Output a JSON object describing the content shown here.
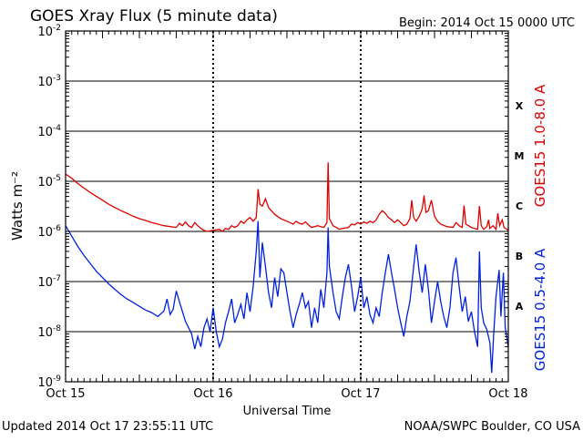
{
  "title": "GOES Xray Flux (5 minute data)",
  "begin_label": "Begin:  2014 Oct 15 0000 UTC",
  "updated_label": "Updated 2014 Oct 17 23:55:11 UTC",
  "credit_label": "NOAA/SWPC Boulder, CO USA",
  "colors": {
    "long_channel": "#e00000",
    "short_channel": "#0020e0",
    "frame": "#000000"
  },
  "chart_data": {
    "type": "line",
    "title": "GOES Xray Flux (5 minute data)",
    "xlabel": "Universal Time",
    "ylabel": "Watts m⁻²",
    "yscale": "log",
    "xlim": [
      0,
      72
    ],
    "ylim": [
      1e-09,
      0.01
    ],
    "x_unit": "hours since 2014 Oct 15 0000 UTC",
    "x_ticks": [
      {
        "value": 0,
        "label": "Oct 15"
      },
      {
        "value": 24,
        "label": "Oct 16"
      },
      {
        "value": 48,
        "label": "Oct 17"
      },
      {
        "value": 72,
        "label": "Oct 18"
      }
    ],
    "y_ticks": [
      {
        "value": 1e-09,
        "base": "10",
        "exp": "-9"
      },
      {
        "value": 1e-08,
        "base": "10",
        "exp": "-8"
      },
      {
        "value": 1e-07,
        "base": "10",
        "exp": "-7"
      },
      {
        "value": 1e-06,
        "base": "10",
        "exp": "-6"
      },
      {
        "value": 1e-05,
        "base": "10",
        "exp": "-5"
      },
      {
        "value": 0.0001,
        "base": "10",
        "exp": "-4"
      },
      {
        "value": 0.001,
        "base": "10",
        "exp": "-3"
      },
      {
        "value": 0.01,
        "base": "10",
        "exp": "-2"
      }
    ],
    "flare_classes": [
      {
        "label": "X",
        "value": 0.00032
      },
      {
        "label": "M",
        "value": 3.2e-05
      },
      {
        "label": "C",
        "value": 3.2e-06
      },
      {
        "label": "B",
        "value": 3.2e-07
      },
      {
        "label": "A",
        "value": 3.2e-08
      }
    ],
    "grid": true,
    "series": [
      {
        "name": "GOES15 1.0-8.0 A",
        "color": "#e00000",
        "points": [
          [
            0,
            1.4e-05
          ],
          [
            1,
            1.15e-05
          ],
          [
            2,
            9e-06
          ],
          [
            3,
            7.3e-06
          ],
          [
            4,
            6e-06
          ],
          [
            5,
            5e-06
          ],
          [
            6,
            4.2e-06
          ],
          [
            7,
            3.5e-06
          ],
          [
            8,
            3e-06
          ],
          [
            9,
            2.6e-06
          ],
          [
            10,
            2.3e-06
          ],
          [
            11,
            2e-06
          ],
          [
            12,
            1.8e-06
          ],
          [
            13,
            1.65e-06
          ],
          [
            14,
            1.5e-06
          ],
          [
            15,
            1.4e-06
          ],
          [
            16,
            1.3e-06
          ],
          [
            17,
            1.25e-06
          ],
          [
            18,
            1.2e-06
          ],
          [
            18.5,
            1.45e-06
          ],
          [
            19,
            1.3e-06
          ],
          [
            19.5,
            1.55e-06
          ],
          [
            20,
            1.3e-06
          ],
          [
            20.5,
            1.2e-06
          ],
          [
            21,
            1.5e-06
          ],
          [
            21.5,
            1.3e-06
          ],
          [
            22,
            1.15e-06
          ],
          [
            22.5,
            1.05e-06
          ],
          [
            23,
            1e-06
          ],
          [
            24,
            1.05e-06
          ],
          [
            25,
            1.1e-06
          ],
          [
            25.5,
            1e-06
          ],
          [
            26,
            1.15e-06
          ],
          [
            26.5,
            1.1e-06
          ],
          [
            27,
            1.3e-06
          ],
          [
            27.5,
            1.2e-06
          ],
          [
            28,
            1.3e-06
          ],
          [
            28.5,
            1.6e-06
          ],
          [
            29,
            1.45e-06
          ],
          [
            29.5,
            1.7e-06
          ],
          [
            30,
            1.9e-06
          ],
          [
            30.5,
            1.6e-06
          ],
          [
            31,
            1.9e-06
          ],
          [
            31.3,
            7e-06
          ],
          [
            31.6,
            3.5e-06
          ],
          [
            32,
            3.2e-06
          ],
          [
            32.5,
            4.5e-06
          ],
          [
            33,
            3e-06
          ],
          [
            34,
            2.2e-06
          ],
          [
            35,
            1.8e-06
          ],
          [
            36,
            1.6e-06
          ],
          [
            37,
            1.4e-06
          ],
          [
            37.5,
            1.6e-06
          ],
          [
            38,
            1.45e-06
          ],
          [
            38.5,
            1.4e-06
          ],
          [
            39,
            1.55e-06
          ],
          [
            39.5,
            1.35e-06
          ],
          [
            40,
            1.2e-06
          ],
          [
            41,
            1.3e-06
          ],
          [
            41.5,
            1.25e-06
          ],
          [
            42,
            1.2e-06
          ],
          [
            42.5,
            1.5e-06
          ],
          [
            42.7,
            2.4e-05
          ],
          [
            42.9,
            1.8e-06
          ],
          [
            43.5,
            1.3e-06
          ],
          [
            44,
            1.2e-06
          ],
          [
            44.5,
            1.1e-06
          ],
          [
            45,
            1.15e-06
          ],
          [
            46,
            1.2e-06
          ],
          [
            46.5,
            1.4e-06
          ],
          [
            47,
            1.35e-06
          ],
          [
            47.5,
            1.5e-06
          ],
          [
            48,
            1.4e-06
          ],
          [
            48.5,
            1.55e-06
          ],
          [
            49,
            1.45e-06
          ],
          [
            49.5,
            1.6e-06
          ],
          [
            50,
            1.5e-06
          ],
          [
            50.5,
            1.7e-06
          ],
          [
            51,
            2.2e-06
          ],
          [
            51.5,
            2.6e-06
          ],
          [
            52,
            2.3e-06
          ],
          [
            52.5,
            1.9e-06
          ],
          [
            53,
            1.7e-06
          ],
          [
            53.5,
            1.5e-06
          ],
          [
            54,
            1.7e-06
          ],
          [
            54.5,
            1.5e-06
          ],
          [
            55,
            1.3e-06
          ],
          [
            55.5,
            1.4e-06
          ],
          [
            56,
            1.8e-06
          ],
          [
            56.3,
            4.2e-06
          ],
          [
            56.6,
            1.9e-06
          ],
          [
            57,
            1.6e-06
          ],
          [
            57.5,
            2e-06
          ],
          [
            58,
            2.8e-06
          ],
          [
            58.3,
            5.2e-06
          ],
          [
            58.6,
            2.4e-06
          ],
          [
            59,
            2.6e-06
          ],
          [
            59.5,
            4.2e-06
          ],
          [
            60,
            2e-06
          ],
          [
            60.5,
            1.6e-06
          ],
          [
            61,
            1.4e-06
          ],
          [
            62,
            1.25e-06
          ],
          [
            63,
            1.2e-06
          ],
          [
            63.5,
            1.5e-06
          ],
          [
            64,
            1.3e-06
          ],
          [
            64.5,
            1.2e-06
          ],
          [
            64.8,
            3.3e-06
          ],
          [
            65.1,
            1.4e-06
          ],
          [
            66,
            1.2e-06
          ],
          [
            66.5,
            1.15e-06
          ],
          [
            67,
            1.1e-06
          ],
          [
            67.3,
            3.2e-06
          ],
          [
            67.6,
            1.3e-06
          ],
          [
            68,
            1.1e-06
          ],
          [
            68.5,
            1.25e-06
          ],
          [
            68.8,
            1.7e-06
          ],
          [
            69,
            1.15e-06
          ],
          [
            69.5,
            1.3e-06
          ],
          [
            70,
            1.1e-06
          ],
          [
            70.3,
            2.3e-06
          ],
          [
            70.6,
            1.3e-06
          ],
          [
            71,
            1.7e-06
          ],
          [
            71.3,
            1.2e-06
          ],
          [
            72,
            1.05e-06
          ]
        ]
      },
      {
        "name": "GOES15 0.5-4.0 A",
        "color": "#0020e0",
        "points": [
          [
            0,
            1.3e-06
          ],
          [
            1,
            8e-07
          ],
          [
            2,
            5e-07
          ],
          [
            3,
            3.3e-07
          ],
          [
            4,
            2.3e-07
          ],
          [
            5,
            1.6e-07
          ],
          [
            6,
            1.2e-07
          ],
          [
            7,
            9e-08
          ],
          [
            8,
            7e-08
          ],
          [
            9,
            5.5e-08
          ],
          [
            10,
            4.5e-08
          ],
          [
            11,
            3.8e-08
          ],
          [
            12,
            3.2e-08
          ],
          [
            13,
            2.7e-08
          ],
          [
            14,
            2.4e-08
          ],
          [
            15,
            2e-08
          ],
          [
            16,
            2.6e-08
          ],
          [
            16.5,
            4.5e-08
          ],
          [
            17,
            2.2e-08
          ],
          [
            17.5,
            2.8e-08
          ],
          [
            18,
            6.5e-08
          ],
          [
            18.5,
            4e-08
          ],
          [
            19,
            2.5e-08
          ],
          [
            19.5,
            1.6e-08
          ],
          [
            20,
            1.2e-08
          ],
          [
            20.5,
            9e-09
          ],
          [
            21,
            4.5e-09
          ],
          [
            21.5,
            8e-09
          ],
          [
            22,
            5e-09
          ],
          [
            22.5,
            1.2e-08
          ],
          [
            23,
            1.8e-08
          ],
          [
            23.5,
            1e-08
          ],
          [
            24,
            3e-08
          ],
          [
            24.5,
            1e-08
          ],
          [
            25,
            5e-09
          ],
          [
            25.5,
            7e-09
          ],
          [
            26,
            1.5e-08
          ],
          [
            26.5,
            2.5e-08
          ],
          [
            27,
            4.5e-08
          ],
          [
            27.5,
            1.5e-08
          ],
          [
            28,
            2.2e-08
          ],
          [
            28.5,
            3.5e-08
          ],
          [
            29,
            1.8e-08
          ],
          [
            29.5,
            6e-08
          ],
          [
            30,
            2.5e-08
          ],
          [
            30.5,
            8e-08
          ],
          [
            31,
            4e-07
          ],
          [
            31.3,
            1.6e-06
          ],
          [
            31.6,
            1.2e-07
          ],
          [
            32,
            6e-07
          ],
          [
            32.5,
            2e-07
          ],
          [
            33,
            6e-08
          ],
          [
            33.5,
            3e-08
          ],
          [
            34,
            1.2e-07
          ],
          [
            34.5,
            5e-08
          ],
          [
            35,
            1.8e-07
          ],
          [
            35.5,
            1.5e-07
          ],
          [
            36,
            6e-08
          ],
          [
            36.5,
            2.5e-08
          ],
          [
            37,
            1.2e-08
          ],
          [
            37.5,
            2.2e-08
          ],
          [
            38,
            3.5e-08
          ],
          [
            38.5,
            6e-08
          ],
          [
            39,
            3e-08
          ],
          [
            39.5,
            4e-08
          ],
          [
            40,
            1.2e-08
          ],
          [
            40.5,
            3e-08
          ],
          [
            41,
            1.5e-08
          ],
          [
            41.5,
            7e-08
          ],
          [
            42,
            3e-08
          ],
          [
            42.5,
            1.5e-07
          ],
          [
            42.7,
            1.2e-06
          ],
          [
            42.9,
            2e-07
          ],
          [
            43.5,
            6e-08
          ],
          [
            44,
            2.5e-08
          ],
          [
            44.5,
            1.8e-08
          ],
          [
            45,
            5e-08
          ],
          [
            45.5,
            1.2e-07
          ],
          [
            46,
            2.2e-07
          ],
          [
            46.5,
            8e-08
          ],
          [
            47,
            2.5e-08
          ],
          [
            47.5,
            5e-08
          ],
          [
            48,
            1.2e-07
          ],
          [
            48.5,
            3e-08
          ],
          [
            49,
            5e-08
          ],
          [
            49.5,
            2.2e-08
          ],
          [
            50,
            1.5e-08
          ],
          [
            50.5,
            3e-08
          ],
          [
            51,
            2e-08
          ],
          [
            51.5,
            6e-08
          ],
          [
            52,
            1.5e-07
          ],
          [
            52.5,
            3.5e-07
          ],
          [
            53,
            1.5e-07
          ],
          [
            53.5,
            7e-08
          ],
          [
            54,
            3e-08
          ],
          [
            54.5,
            1.5e-08
          ],
          [
            55,
            8e-09
          ],
          [
            55.5,
            2e-08
          ],
          [
            56,
            4e-08
          ],
          [
            56.5,
            1.5e-07
          ],
          [
            57,
            5.5e-07
          ],
          [
            57.5,
            1.6e-07
          ],
          [
            58,
            6e-08
          ],
          [
            58.5,
            2.2e-07
          ],
          [
            59,
            7e-08
          ],
          [
            59.5,
            1.5e-08
          ],
          [
            60,
            4e-08
          ],
          [
            60.5,
            1e-07
          ],
          [
            61,
            4e-08
          ],
          [
            61.5,
            2e-08
          ],
          [
            62,
            1.2e-08
          ],
          [
            62.5,
            3e-08
          ],
          [
            63,
            1.5e-07
          ],
          [
            63.5,
            3e-07
          ],
          [
            64,
            8e-08
          ],
          [
            64.5,
            2.5e-08
          ],
          [
            65,
            5e-08
          ],
          [
            65.5,
            1.6e-08
          ],
          [
            66,
            2.5e-08
          ],
          [
            66.5,
            1e-08
          ],
          [
            67,
            5e-09
          ],
          [
            67.3,
            4e-07
          ],
          [
            67.6,
            3e-08
          ],
          [
            68,
            1.5e-08
          ],
          [
            68.5,
            1.1e-08
          ],
          [
            69,
            6e-09
          ],
          [
            69.3,
            1.5e-09
          ],
          [
            69.6,
            8e-09
          ],
          [
            70,
            5e-08
          ],
          [
            70.5,
            1.7e-07
          ],
          [
            70.8,
            2e-08
          ],
          [
            71.2,
            1.5e-07
          ],
          [
            71.5,
            1.2e-08
          ],
          [
            72,
            5e-09
          ]
        ]
      }
    ]
  }
}
